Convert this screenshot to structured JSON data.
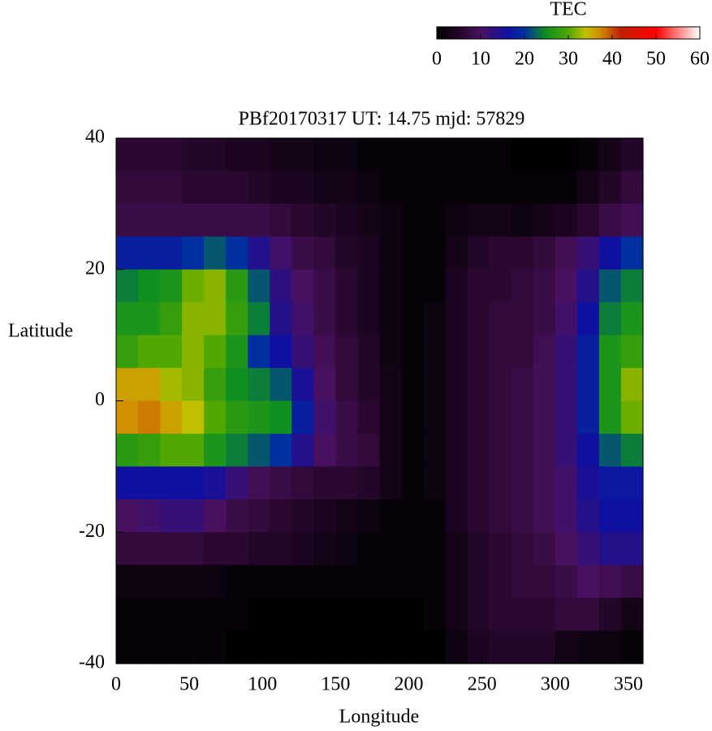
{
  "chart_data": {
    "type": "heatmap",
    "title": "PBf20170317  UT: 14.75  mjd: 57829",
    "x_label": "Longitude",
    "y_label": "Latitude",
    "xlim": [
      0,
      360
    ],
    "ylim": [
      -40,
      40
    ],
    "xticks": [
      0,
      50,
      100,
      150,
      200,
      250,
      300,
      350
    ],
    "yticks": [
      -40,
      -20,
      0,
      20,
      40
    ],
    "x": [
      7.5,
      22.5,
      37.5,
      52.5,
      67.5,
      82.5,
      97.5,
      112.5,
      127.5,
      142.5,
      157.5,
      172.5,
      187.5,
      202.5,
      217.5,
      232.5,
      247.5,
      262.5,
      277.5,
      292.5,
      307.5,
      322.5,
      337.5,
      352.5
    ],
    "y": [
      37.5,
      32.5,
      27.5,
      22.5,
      17.5,
      12.5,
      7.5,
      2.5,
      -2.5,
      -7.5,
      -12.5,
      -17.5,
      -22.5,
      -27.5,
      -32.5,
      -37.5
    ],
    "z": [
      [
        6,
        6,
        6,
        5,
        5,
        4,
        4,
        3,
        3,
        2,
        2,
        1,
        1,
        1,
        1,
        1,
        1,
        1,
        0,
        0,
        0,
        1,
        3,
        5
      ],
      [
        7,
        7,
        7,
        6,
        6,
        6,
        5,
        4,
        4,
        3,
        3,
        2,
        1,
        1,
        1,
        1,
        1,
        1,
        1,
        1,
        1,
        3,
        5,
        7
      ],
      [
        8,
        8,
        8,
        8,
        8,
        8,
        8,
        7,
        6,
        5,
        4,
        3,
        2,
        1,
        1,
        2,
        3,
        3,
        2,
        3,
        4,
        6,
        8,
        9
      ],
      [
        18,
        18,
        18,
        20,
        22,
        20,
        14,
        11,
        8,
        7,
        5,
        4,
        2,
        1,
        1,
        3,
        5,
        6,
        6,
        7,
        9,
        12,
        16,
        20
      ],
      [
        24,
        25,
        26,
        31,
        32,
        27,
        22,
        13,
        10,
        8,
        6,
        4,
        2,
        1,
        1,
        4,
        6,
        6,
        7,
        8,
        10,
        14,
        22,
        24
      ],
      [
        26,
        26,
        28,
        32,
        32,
        28,
        24,
        14,
        11,
        8,
        6,
        4,
        2,
        1,
        2,
        4,
        6,
        7,
        7,
        8,
        11,
        16,
        24,
        26
      ],
      [
        28,
        30,
        30,
        32,
        30,
        26,
        20,
        16,
        12,
        9,
        7,
        5,
        2,
        1,
        2,
        4,
        6,
        7,
        7,
        9,
        12,
        18,
        26,
        28
      ],
      [
        36,
        36,
        33,
        32,
        28,
        25,
        24,
        22,
        15,
        10,
        7,
        5,
        3,
        1,
        2,
        4,
        6,
        7,
        8,
        9,
        12,
        18,
        26,
        32
      ],
      [
        37,
        38,
        36,
        34,
        30,
        27,
        26,
        25,
        18,
        11,
        8,
        6,
        3,
        1,
        2,
        4,
        6,
        7,
        8,
        9,
        12,
        18,
        26,
        31
      ],
      [
        27,
        28,
        30,
        30,
        26,
        24,
        22,
        20,
        14,
        10,
        8,
        7,
        3,
        1,
        2,
        4,
        6,
        7,
        8,
        9,
        12,
        16,
        22,
        24
      ],
      [
        16,
        16,
        16,
        16,
        15,
        12,
        9,
        8,
        7,
        6,
        6,
        5,
        3,
        1,
        2,
        4,
        6,
        7,
        8,
        9,
        11,
        15,
        17,
        17
      ],
      [
        10,
        11,
        12,
        12,
        10,
        8,
        7,
        6,
        5,
        4,
        3,
        2,
        1,
        1,
        1,
        4,
        6,
        7,
        8,
        9,
        11,
        14,
        16,
        16
      ],
      [
        7,
        7,
        7,
        7,
        6,
        6,
        5,
        5,
        4,
        3,
        2,
        1,
        1,
        1,
        1,
        3,
        5,
        6,
        7,
        8,
        10,
        12,
        14,
        14
      ],
      [
        2,
        2,
        2,
        2,
        2,
        1,
        1,
        1,
        1,
        1,
        1,
        1,
        1,
        1,
        1,
        3,
        5,
        6,
        7,
        7,
        8,
        10,
        9,
        8
      ],
      [
        1,
        1,
        1,
        1,
        1,
        1,
        0,
        0,
        0,
        0,
        0,
        0,
        0,
        0,
        1,
        3,
        5,
        6,
        6,
        6,
        7,
        7,
        5,
        3
      ],
      [
        1,
        1,
        1,
        1,
        1,
        0,
        0,
        0,
        0,
        0,
        0,
        0,
        0,
        0,
        0,
        2,
        4,
        5,
        5,
        5,
        3,
        2,
        2,
        1
      ]
    ],
    "colorbar": {
      "label": "TEC",
      "lim": [
        0,
        60
      ],
      "ticks": [
        0,
        10,
        20,
        30,
        40,
        50,
        60
      ],
      "stops": [
        {
          "value": 0,
          "color": "#000000"
        },
        {
          "value": 6,
          "color": "#2a0830"
        },
        {
          "value": 10,
          "color": "#4a1060"
        },
        {
          "value": 16,
          "color": "#1010a0"
        },
        {
          "value": 20,
          "color": "#0030a0"
        },
        {
          "value": 25,
          "color": "#109020"
        },
        {
          "value": 30,
          "color": "#50a800"
        },
        {
          "value": 34,
          "color": "#c0c000"
        },
        {
          "value": 37,
          "color": "#d09000"
        },
        {
          "value": 42,
          "color": "#c02000"
        },
        {
          "value": 50,
          "color": "#ff0000"
        },
        {
          "value": 60,
          "color": "#ffffff"
        }
      ]
    }
  }
}
